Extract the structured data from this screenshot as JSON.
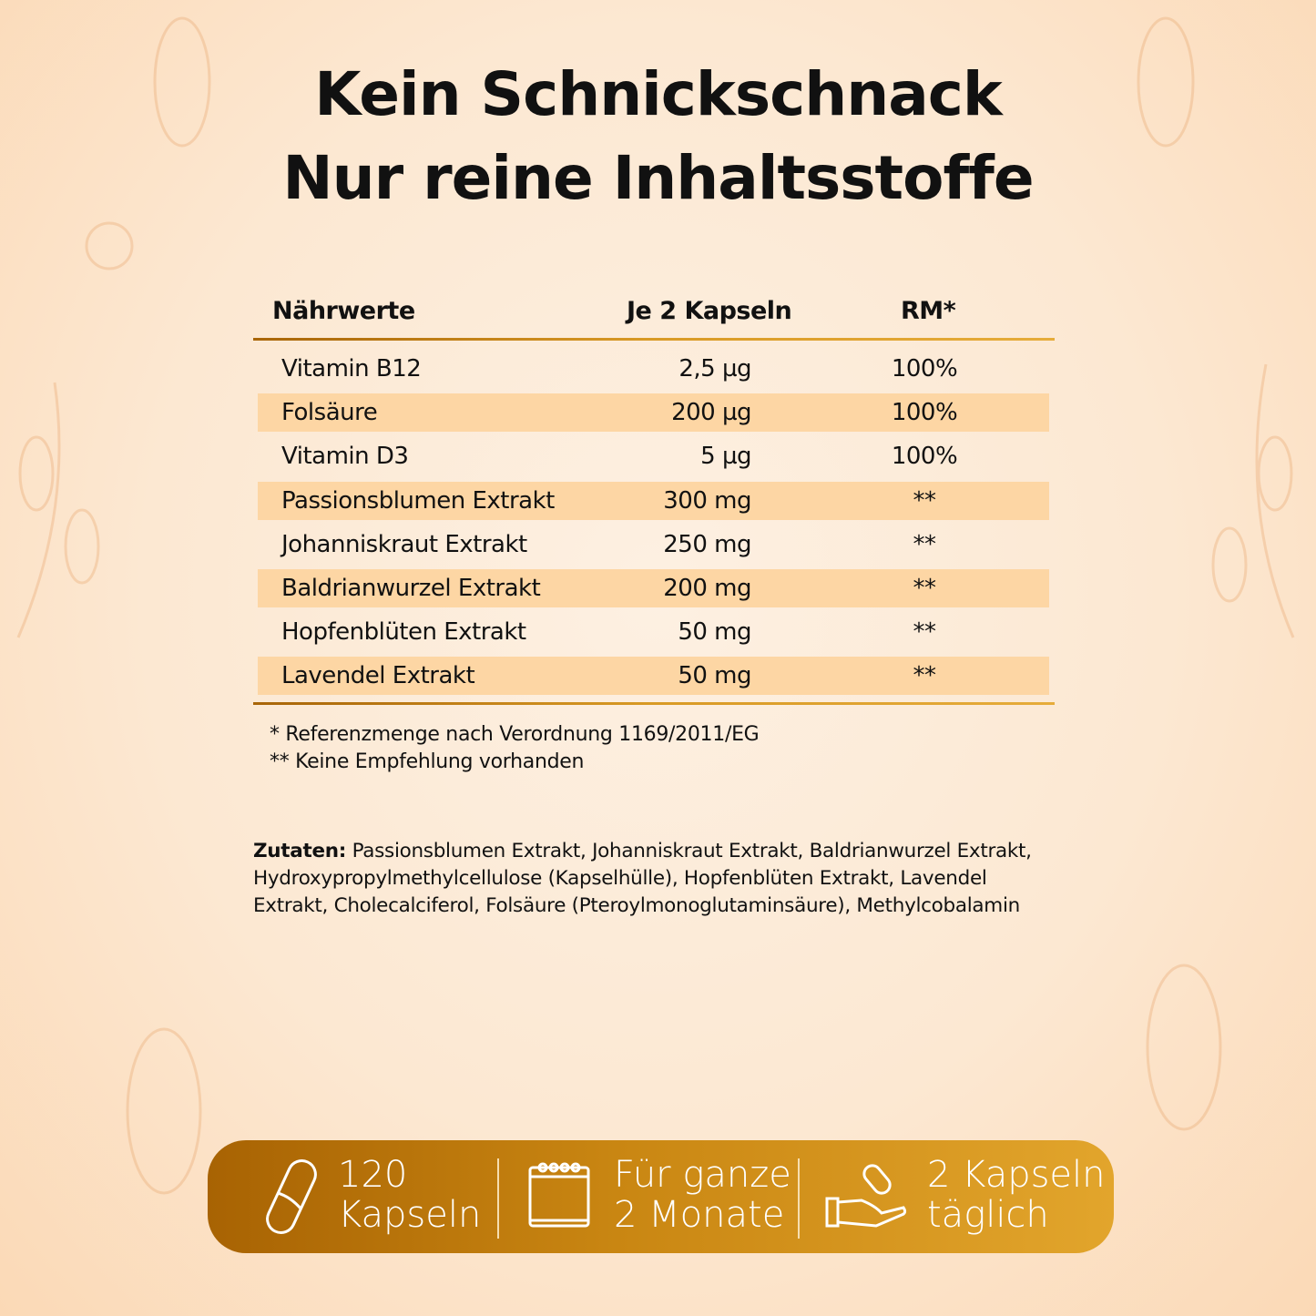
{
  "title": {
    "line1": "Kein Schnickschnack",
    "line2": "Nur reine Inhaltsstoffe"
  },
  "table": {
    "headers": [
      "Nährwerte",
      "Je 2 Kapseln",
      "RM*"
    ],
    "rows": [
      {
        "name": "Vitamin B12",
        "amount": "2,5 µg",
        "rm": "100%"
      },
      {
        "name": "Folsäure",
        "amount": "200 µg",
        "rm": "100%"
      },
      {
        "name": "Vitamin D3",
        "amount": "5 µg",
        "rm": "100%"
      },
      {
        "name": "Passionsblumen Extrakt",
        "amount": "300 mg",
        "rm": "**"
      },
      {
        "name": "Johanniskraut Extrakt",
        "amount": "250 mg",
        "rm": "**"
      },
      {
        "name": "Baldrianwurzel Extrakt",
        "amount": "200 mg",
        "rm": "**"
      },
      {
        "name": "Hopfenblüten Extrakt",
        "amount": "50 mg",
        "rm": "**"
      },
      {
        "name": "Lavendel Extrakt",
        "amount": "50 mg",
        "rm": "**"
      }
    ],
    "footnotes": [
      "* Referenzmenge nach Verordnung 1169/2011/EG",
      "** Keine Empfehlung vorhanden"
    ]
  },
  "ingredients": {
    "label": "Zutaten:",
    "text": " Passionsblumen Extrakt, Johanniskraut Extrakt, Baldrianwurzel Extrakt, Hydroxypropylmethylcellulose (Kapselhülle), Hopfenblüten Extrakt, Lavendel Extrakt, Cholecalciferol, Folsäure (Pteroylmonoglutaminsäure), Methylcobalamin"
  },
  "banner": [
    {
      "icon": "capsule-icon",
      "line1": "120",
      "line2": "Kapseln"
    },
    {
      "icon": "calendar-icon",
      "line1": "Für ganze",
      "line2": "2 Monate"
    },
    {
      "icon": "hand-capsule-icon",
      "line1": "2 Kapseln",
      "line2": "täglich"
    }
  ],
  "colors": {
    "background": "#fce8d2",
    "stripe": "#fdd6a4",
    "accent": "#c98612"
  }
}
